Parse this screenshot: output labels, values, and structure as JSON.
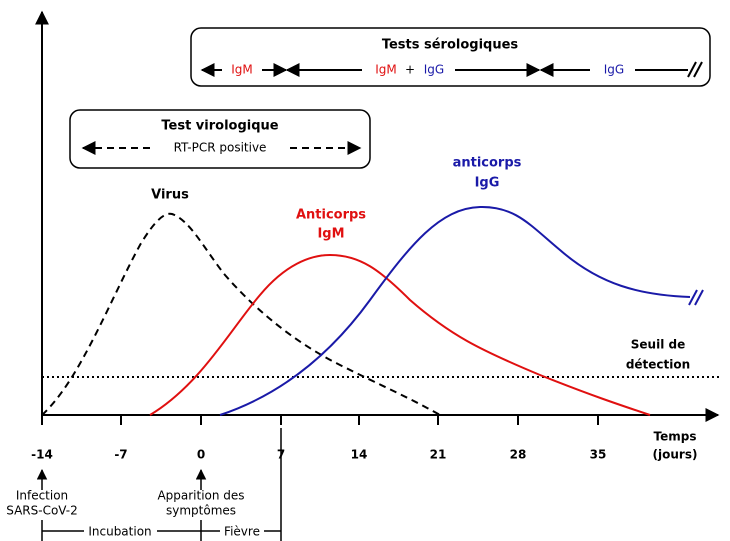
{
  "serology_box": {
    "title": "Tests sérologiques",
    "igm_only": "IgM",
    "igm_both": "IgM",
    "plus": "+",
    "igg_both": "IgG",
    "igg_only": "IgG"
  },
  "virology_box": {
    "title": "Test virologique",
    "label": "RT-PCR positive"
  },
  "curves": {
    "virus": "Virus",
    "igm_line1": "Anticorps",
    "igm_line2": "IgM",
    "igg_line1": "anticorps",
    "igg_line2": "IgG"
  },
  "threshold": {
    "line1": "Seuil de",
    "line2": "détection"
  },
  "x_axis": {
    "label_line1": "Temps",
    "label_line2": "(jours)",
    "ticks": [
      "-14",
      "-7",
      "0",
      "7",
      "14",
      "21",
      "28",
      "35"
    ]
  },
  "events": {
    "infection_line1": "Infection",
    "infection_line2": "SARS-CoV-2",
    "symptoms_line1": "Apparition des",
    "symptoms_line2": "symptômes",
    "incubation": "Incubation",
    "fever": "Fièvre"
  }
}
